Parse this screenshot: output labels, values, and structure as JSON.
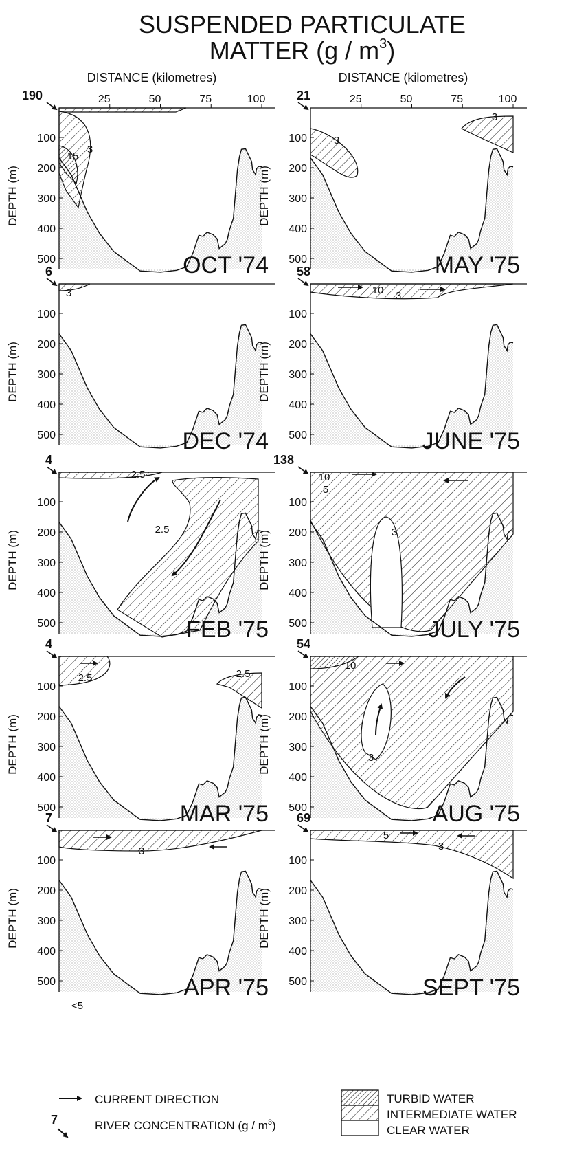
{
  "title": {
    "line1": "SUSPENDED PARTICULATE",
    "line2": "MATTER (g / m",
    "sup": "3",
    "close": ")"
  },
  "axes": {
    "distance_label": "DISTANCE (kilometres)",
    "depth_label": "DEPTH (m)",
    "distance_ticks": [
      "25",
      "50",
      "75",
      "100"
    ],
    "depth_ticks": [
      "100",
      "200",
      "300",
      "400",
      "500"
    ]
  },
  "panels": [
    {
      "month": "OCT '74",
      "river": "190",
      "labels": [
        "3",
        "15"
      ],
      "pattern": "oct"
    },
    {
      "month": "MAY '75",
      "river": "21",
      "labels": [
        "3",
        "3"
      ],
      "pattern": "may"
    },
    {
      "month": "DEC '74",
      "river": "6",
      "labels": [
        "3"
      ],
      "pattern": "dec"
    },
    {
      "month": "JUNE '75",
      "river": "58",
      "labels": [
        "10",
        "3"
      ],
      "pattern": "june"
    },
    {
      "month": "FEB '75",
      "river": "4",
      "labels": [
        "2.5",
        "2.5"
      ],
      "pattern": "feb"
    },
    {
      "month": "JULY '75",
      "river": "138",
      "labels": [
        "10",
        "5",
        "3"
      ],
      "pattern": "july"
    },
    {
      "month": "MAR '75",
      "river": "4",
      "labels": [
        "2.5",
        "2.5"
      ],
      "pattern": "mar"
    },
    {
      "month": "AUG '75",
      "river": "54",
      "labels": [
        "10",
        "3"
      ],
      "pattern": "aug"
    },
    {
      "month": "APR '75",
      "river": "7",
      "labels": [
        "3"
      ],
      "extra": "<5",
      "pattern": "apr"
    },
    {
      "month": "SEPT '75",
      "river": "69",
      "labels": [
        "5",
        "3"
      ],
      "pattern": "sept"
    }
  ],
  "legend": {
    "current": "CURRENT DIRECTION",
    "river_num": "7",
    "river": "RIVER CONCENTRATION (g / m",
    "river_sup": "3",
    "river_close": ")",
    "turbid": "TURBID WATER",
    "intermediate": "INTERMEDIATE WATER",
    "clear": "CLEAR WATER"
  }
}
